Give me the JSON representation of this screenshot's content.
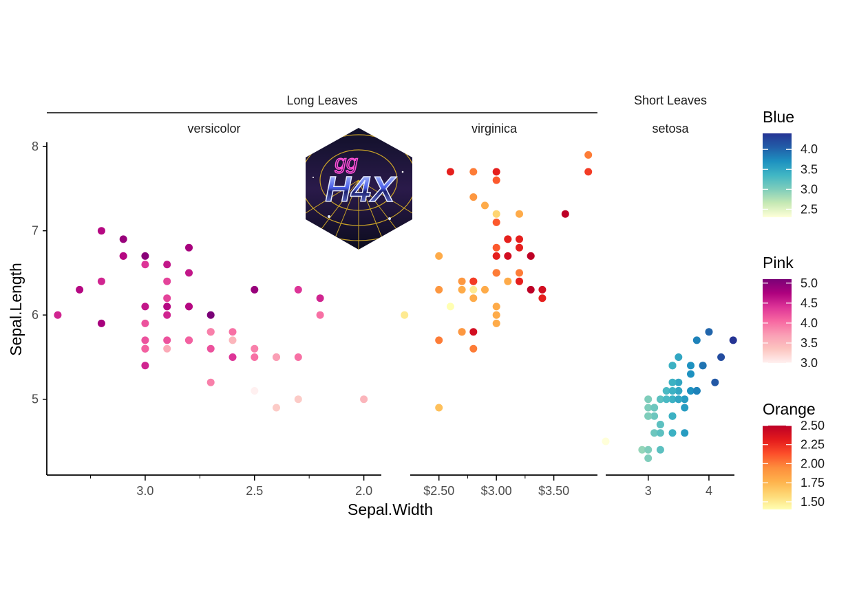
{
  "chart_data": {
    "type": "scatter",
    "x_label": "Sepal.Width",
    "y_label": "Sepal.Length",
    "y_ticks": [
      5,
      6,
      7,
      8
    ],
    "y_range": [
      4.1,
      8.05
    ],
    "groups": [
      {
        "label": "Long Leaves",
        "facets": [
          "versicolor",
          "virginica"
        ]
      },
      {
        "label": "Short Leaves",
        "facets": [
          "setosa"
        ]
      }
    ],
    "facets": [
      {
        "name": "versicolor",
        "x_scale": "reverse",
        "x_range": [
          3.45,
          1.92
        ],
        "x_ticks": [
          3.0,
          2.5,
          2.0
        ],
        "x_tick_labels": [
          "3.0",
          "2.5",
          "2.0"
        ],
        "x_minor_ticks": [
          3.25,
          2.75,
          2.25
        ],
        "color_scale": "Pink",
        "points": [
          [
            3.2,
            7.0,
            4.7
          ],
          [
            3.2,
            6.4,
            4.5
          ],
          [
            3.1,
            6.9,
            4.9
          ],
          [
            2.3,
            5.5,
            4.0
          ],
          [
            2.8,
            6.5,
            4.6
          ],
          [
            2.8,
            5.7,
            4.5
          ],
          [
            3.3,
            6.3,
            4.7
          ],
          [
            2.4,
            4.9,
            3.3
          ],
          [
            2.9,
            6.6,
            4.6
          ],
          [
            2.7,
            5.2,
            3.9
          ],
          [
            2.0,
            5.0,
            3.5
          ],
          [
            3.0,
            5.9,
            4.2
          ],
          [
            2.2,
            6.0,
            4.0
          ],
          [
            2.9,
            6.1,
            4.7
          ],
          [
            2.9,
            5.6,
            3.6
          ],
          [
            3.1,
            6.7,
            4.4
          ],
          [
            3.0,
            5.6,
            4.5
          ],
          [
            2.7,
            5.8,
            4.1
          ],
          [
            2.2,
            6.2,
            4.5
          ],
          [
            2.5,
            5.6,
            3.9
          ],
          [
            3.2,
            5.9,
            4.8
          ],
          [
            2.8,
            6.1,
            4.0
          ],
          [
            2.5,
            6.3,
            4.9
          ],
          [
            2.8,
            6.1,
            4.7
          ],
          [
            2.9,
            6.4,
            4.3
          ],
          [
            3.0,
            6.6,
            4.4
          ],
          [
            2.8,
            6.8,
            4.8
          ],
          [
            3.0,
            6.7,
            5.0
          ],
          [
            2.9,
            6.0,
            4.5
          ],
          [
            2.6,
            5.7,
            3.5
          ],
          [
            2.4,
            5.5,
            3.8
          ],
          [
            2.4,
            5.5,
            3.7
          ],
          [
            2.7,
            5.8,
            3.9
          ],
          [
            2.7,
            6.0,
            5.1
          ],
          [
            3.0,
            5.4,
            4.5
          ],
          [
            3.4,
            6.0,
            4.5
          ],
          [
            3.1,
            6.7,
            4.7
          ],
          [
            2.3,
            6.3,
            4.4
          ],
          [
            3.0,
            5.6,
            4.1
          ],
          [
            2.5,
            5.5,
            4.0
          ],
          [
            2.6,
            5.5,
            4.4
          ],
          [
            3.0,
            6.1,
            4.6
          ],
          [
            2.6,
            5.8,
            4.0
          ],
          [
            2.3,
            5.0,
            3.3
          ],
          [
            2.7,
            5.6,
            4.2
          ],
          [
            3.0,
            5.7,
            4.2
          ],
          [
            2.9,
            5.7,
            4.2
          ],
          [
            2.9,
            6.2,
            4.3
          ],
          [
            2.5,
            5.1,
            3.0
          ],
          [
            2.8,
            5.7,
            4.1
          ]
        ]
      },
      {
        "name": "virginica",
        "x_scale": "continuous",
        "x_range": [
          2.25,
          3.88
        ],
        "x_ticks": [
          2.5,
          3.0,
          3.5
        ],
        "x_tick_labels": [
          "$2.50",
          "$3.00",
          "$3.50"
        ],
        "x_minor_ticks": [
          2.75,
          3.25
        ],
        "color_scale": "Orange",
        "points": [
          [
            3.3,
            6.3,
            2.5
          ],
          [
            2.7,
            5.8,
            1.9
          ],
          [
            3.0,
            7.1,
            2.1
          ],
          [
            2.9,
            6.3,
            1.8
          ],
          [
            3.0,
            6.5,
            2.2
          ],
          [
            3.0,
            7.6,
            2.1
          ],
          [
            2.5,
            4.9,
            1.7
          ],
          [
            2.9,
            7.3,
            1.8
          ],
          [
            2.5,
            6.7,
            1.8
          ],
          [
            3.6,
            7.2,
            2.5
          ],
          [
            3.2,
            6.5,
            2.0
          ],
          [
            2.7,
            6.4,
            1.9
          ],
          [
            3.0,
            6.8,
            2.1
          ],
          [
            2.5,
            5.7,
            2.0
          ],
          [
            2.8,
            5.8,
            2.4
          ],
          [
            3.2,
            6.4,
            2.3
          ],
          [
            3.0,
            6.5,
            1.8
          ],
          [
            3.8,
            7.7,
            2.2
          ],
          [
            2.6,
            7.7,
            2.3
          ],
          [
            2.2,
            6.0,
            1.5
          ],
          [
            3.2,
            6.9,
            2.3
          ],
          [
            2.8,
            5.6,
            2.0
          ],
          [
            2.8,
            7.7,
            2.0
          ],
          [
            2.7,
            6.3,
            1.8
          ],
          [
            3.3,
            6.7,
            2.1
          ],
          [
            3.2,
            7.2,
            1.8
          ],
          [
            2.8,
            6.2,
            1.8
          ],
          [
            3.0,
            6.1,
            1.8
          ],
          [
            2.8,
            6.4,
            2.1
          ],
          [
            3.0,
            7.2,
            1.6
          ],
          [
            2.8,
            7.4,
            1.9
          ],
          [
            3.8,
            7.9,
            2.0
          ],
          [
            2.8,
            6.4,
            2.2
          ],
          [
            2.8,
            6.3,
            1.5
          ],
          [
            2.6,
            6.1,
            1.4
          ],
          [
            3.0,
            7.7,
            2.3
          ],
          [
            3.4,
            6.3,
            2.4
          ],
          [
            3.1,
            6.4,
            1.8
          ],
          [
            3.0,
            6.0,
            1.8
          ],
          [
            3.1,
            6.9,
            2.1
          ],
          [
            3.1,
            6.7,
            2.4
          ],
          [
            3.1,
            6.9,
            2.3
          ],
          [
            2.7,
            5.8,
            1.9
          ],
          [
            3.2,
            6.8,
            2.3
          ],
          [
            3.3,
            6.7,
            2.5
          ],
          [
            3.0,
            6.7,
            2.3
          ],
          [
            2.5,
            6.3,
            1.9
          ],
          [
            3.0,
            6.5,
            2.0
          ],
          [
            3.4,
            6.2,
            2.3
          ],
          [
            3.0,
            5.9,
            1.8
          ]
        ]
      },
      {
        "name": "setosa",
        "x_scale": "continuous",
        "x_range": [
          2.3,
          4.42
        ],
        "x_ticks": [
          3,
          4
        ],
        "x_tick_labels": [
          "3",
          "4"
        ],
        "x_minor_ticks": [],
        "color_scale": "Blue",
        "points": [
          [
            3.5,
            5.1
          ],
          [
            3.0,
            4.9
          ],
          [
            3.2,
            4.7
          ],
          [
            3.1,
            4.6
          ],
          [
            3.6,
            5.0
          ],
          [
            3.9,
            5.4
          ],
          [
            3.4,
            4.6
          ],
          [
            3.4,
            5.0
          ],
          [
            2.9,
            4.4
          ],
          [
            3.1,
            4.9
          ],
          [
            3.7,
            5.4
          ],
          [
            3.4,
            4.8
          ],
          [
            3.0,
            4.8
          ],
          [
            3.0,
            4.3
          ],
          [
            4.0,
            5.8
          ],
          [
            4.4,
            5.7
          ],
          [
            3.9,
            5.4
          ],
          [
            3.5,
            5.1
          ],
          [
            3.8,
            5.7
          ],
          [
            3.8,
            5.1
          ],
          [
            3.4,
            5.4
          ],
          [
            3.7,
            5.1
          ],
          [
            3.6,
            4.6
          ],
          [
            3.3,
            5.1
          ],
          [
            3.4,
            4.8
          ],
          [
            3.0,
            5.0
          ],
          [
            3.4,
            5.0
          ],
          [
            3.5,
            5.2
          ],
          [
            3.4,
            5.2
          ],
          [
            3.2,
            4.7
          ],
          [
            3.1,
            4.8
          ],
          [
            3.4,
            5.4
          ],
          [
            4.1,
            5.2
          ],
          [
            4.2,
            5.5
          ],
          [
            3.1,
            4.9
          ],
          [
            3.2,
            5.0
          ],
          [
            3.5,
            5.5
          ],
          [
            3.6,
            4.9
          ],
          [
            3.0,
            4.4
          ],
          [
            3.4,
            5.1
          ],
          [
            3.5,
            5.0
          ],
          [
            2.3,
            4.5
          ],
          [
            3.2,
            4.4
          ],
          [
            3.5,
            5.0
          ],
          [
            3.8,
            5.1
          ],
          [
            3.0,
            4.8
          ],
          [
            3.8,
            5.1
          ],
          [
            3.2,
            4.6
          ],
          [
            3.7,
            5.3
          ],
          [
            3.3,
            5.0
          ]
        ]
      }
    ],
    "legends": [
      {
        "title": "Blue",
        "palette": [
          "#ffffd9",
          "#c7e9b4",
          "#7fcdbb",
          "#41b6c4",
          "#1d91c0",
          "#225ea8",
          "#253494"
        ],
        "range": [
          2.3,
          4.4
        ],
        "ticks": [
          2.5,
          3.0,
          3.5,
          4.0
        ],
        "tick_labels": [
          "2.5",
          "3.0",
          "3.5",
          "4.0"
        ]
      },
      {
        "title": "Pink",
        "palette": [
          "#fff0f0",
          "#fcc5c0",
          "#fa9fb5",
          "#f768a1",
          "#dd3497",
          "#ae017e",
          "#7a0177"
        ],
        "range": [
          3.0,
          5.1
        ],
        "ticks": [
          3.0,
          3.5,
          4.0,
          4.5,
          5.0
        ],
        "tick_labels": [
          "3.0",
          "3.5",
          "4.0",
          "4.5",
          "5.0"
        ]
      },
      {
        "title": "Orange",
        "palette": [
          "#ffffb2",
          "#fed976",
          "#feb24c",
          "#fd8d3c",
          "#fc4e2a",
          "#e31a1c",
          "#bd0026"
        ],
        "range": [
          1.4,
          2.5
        ],
        "ticks": [
          1.5,
          1.75,
          2.0,
          2.25,
          2.5
        ],
        "tick_labels": [
          "1.50",
          "1.75",
          "2.00",
          "2.25",
          "2.50"
        ]
      }
    ],
    "grid": false,
    "legend_position": "right"
  },
  "logo": {
    "text": "H4X",
    "subtext": "gg"
  }
}
